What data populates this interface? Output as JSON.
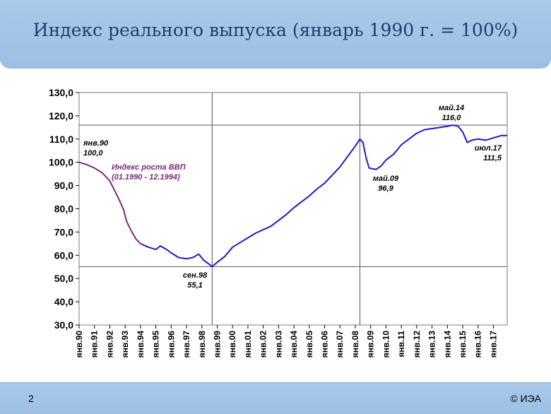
{
  "slide": {
    "title": "Индекс реального выпуска (январь 1990 г. = 100%)",
    "number": "2",
    "copyright": "© ИЭА"
  },
  "chart_data": {
    "type": "line",
    "ylim": [
      30,
      130
    ],
    "y_ticks": [
      "30,0",
      "40,0",
      "50,0",
      "60,0",
      "70,0",
      "80,0",
      "90,0",
      "100,0",
      "110,0",
      "120,0",
      "130,0"
    ],
    "x_ticks": [
      "янв.90",
      "янв.91",
      "янв.92",
      "янв.93",
      "янв.94",
      "янв.95",
      "янв.96",
      "янв.97",
      "янв.98",
      "янв.99",
      "янв.00",
      "янв.01",
      "янв.02",
      "янв.03",
      "янв.04",
      "янв.05",
      "янв.06",
      "янв.07",
      "янв.08",
      "янв.09",
      "янв.10",
      "янв.11",
      "янв.12",
      "янв.13",
      "янв.14",
      "янв.15",
      "янв.16",
      "янв.17"
    ],
    "x_range": [
      1990.0,
      2017.9
    ],
    "colors": {
      "gdp_series": "#7b2a7a",
      "output_series": "#1c1cc8",
      "ref_lines": "#6a6a7a"
    },
    "reference_lines": {
      "horizontal": [
        116.0,
        55.1
      ],
      "vertical": [
        1998.67,
        2008.3
      ]
    },
    "series": [
      {
        "name": "Индекс роста ВВП",
        "points": [
          [
            1990.0,
            100.0
          ],
          [
            1990.5,
            99.0
          ],
          [
            1991.0,
            97.5
          ],
          [
            1991.5,
            95.5
          ],
          [
            1992.0,
            92.0
          ],
          [
            1992.3,
            88.0
          ],
          [
            1992.6,
            84.0
          ],
          [
            1992.9,
            79.5
          ],
          [
            1993.1,
            74.5
          ],
          [
            1993.4,
            70.5
          ],
          [
            1993.7,
            67.0
          ],
          [
            1994.0,
            65.0
          ]
        ]
      },
      {
        "name": "",
        "points": [
          [
            1994.0,
            65.0
          ],
          [
            1994.5,
            63.5
          ],
          [
            1995.0,
            62.5
          ],
          [
            1995.3,
            64.0
          ],
          [
            1995.7,
            62.5
          ],
          [
            1996.0,
            61.0
          ],
          [
            1996.5,
            59.0
          ],
          [
            1997.0,
            58.5
          ],
          [
            1997.4,
            59.0
          ],
          [
            1997.8,
            60.5
          ],
          [
            1998.1,
            58.0
          ],
          [
            1998.4,
            56.5
          ],
          [
            1998.67,
            55.1
          ],
          [
            1999.0,
            57.0
          ],
          [
            1999.5,
            59.5
          ],
          [
            2000.0,
            63.5
          ],
          [
            2000.5,
            65.5
          ],
          [
            2001.0,
            67.5
          ],
          [
            2001.5,
            69.5
          ],
          [
            2002.0,
            71.0
          ],
          [
            2002.5,
            72.5
          ],
          [
            2003.0,
            75.0
          ],
          [
            2003.5,
            77.5
          ],
          [
            2004.0,
            80.5
          ],
          [
            2004.5,
            83.0
          ],
          [
            2005.0,
            85.5
          ],
          [
            2005.5,
            88.5
          ],
          [
            2006.0,
            91.0
          ],
          [
            2006.5,
            94.5
          ],
          [
            2007.0,
            98.0
          ],
          [
            2007.5,
            102.5
          ],
          [
            2008.0,
            107.0
          ],
          [
            2008.3,
            110.0
          ],
          [
            2008.5,
            108.5
          ],
          [
            2008.7,
            102.0
          ],
          [
            2008.9,
            97.5
          ],
          [
            2009.35,
            96.9
          ],
          [
            2009.7,
            98.5
          ],
          [
            2010.0,
            101.0
          ],
          [
            2010.5,
            103.5
          ],
          [
            2011.0,
            107.5
          ],
          [
            2011.5,
            110.0
          ],
          [
            2012.0,
            112.5
          ],
          [
            2012.5,
            114.0
          ],
          [
            2013.0,
            114.5
          ],
          [
            2013.5,
            115.0
          ],
          [
            2014.0,
            115.5
          ],
          [
            2014.35,
            116.0
          ],
          [
            2014.7,
            115.5
          ],
          [
            2015.0,
            113.0
          ],
          [
            2015.3,
            108.5
          ],
          [
            2015.6,
            109.5
          ],
          [
            2016.0,
            110.0
          ],
          [
            2016.5,
            109.5
          ],
          [
            2017.0,
            110.5
          ],
          [
            2017.5,
            111.5
          ],
          [
            2017.9,
            111.5
          ]
        ]
      }
    ],
    "annotations": [
      {
        "id": "jan90",
        "lines": [
          "янв.90",
          "100,0"
        ]
      },
      {
        "id": "gdp",
        "lines": [
          "Индекс роста ВВП",
          "(01.1990 - 12.1994)"
        ]
      },
      {
        "id": "sep98",
        "lines": [
          "сен.98",
          "55,1"
        ]
      },
      {
        "id": "may09",
        "lines": [
          "май.09",
          "96,9"
        ]
      },
      {
        "id": "may14",
        "lines": [
          "май.14",
          "116,0"
        ]
      },
      {
        "id": "jul17",
        "lines": [
          "июл.17",
          "111,5"
        ]
      }
    ]
  }
}
